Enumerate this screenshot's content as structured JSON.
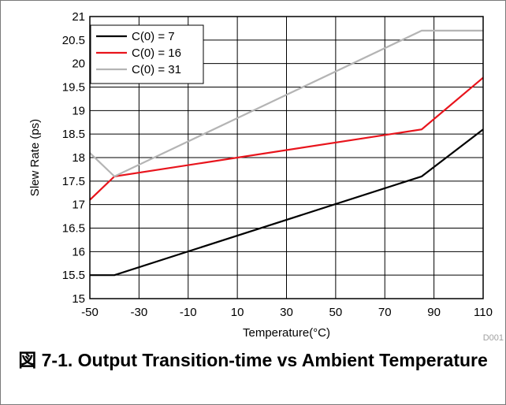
{
  "caption": "図 7-1. Output Transition-time vs Ambient Temperature",
  "figure_code": "D001",
  "chart_data": {
    "type": "line",
    "title": "",
    "xlabel": "Temperature(°C)",
    "ylabel": "Slew Rate (ps)",
    "xlim": [
      -50,
      110
    ],
    "ylim": [
      15,
      21
    ],
    "xticks": [
      "-50",
      "-30",
      "-10",
      "10",
      "30",
      "50",
      "70",
      "90",
      "110"
    ],
    "yticks": [
      "15",
      "15.5",
      "16",
      "16.5",
      "17",
      "17.5",
      "18",
      "18.5",
      "19",
      "19.5",
      "20",
      "20.5",
      "21"
    ],
    "grid": true,
    "legend_position": "top-left",
    "series": [
      {
        "name": "C(0) = 7",
        "color": "#000000",
        "x": [
          -50,
          -40,
          85,
          110
        ],
        "y": [
          15.5,
          15.5,
          17.6,
          18.6
        ]
      },
      {
        "name": "C(0) = 16",
        "color": "#e8141c",
        "x": [
          -50,
          -40,
          85,
          110
        ],
        "y": [
          17.1,
          17.6,
          18.6,
          19.7
        ]
      },
      {
        "name": "C(0) = 31",
        "color": "#b4b4b4",
        "x": [
          -50,
          -40,
          85,
          110
        ],
        "y": [
          18.1,
          17.6,
          20.7,
          20.7
        ]
      }
    ]
  }
}
